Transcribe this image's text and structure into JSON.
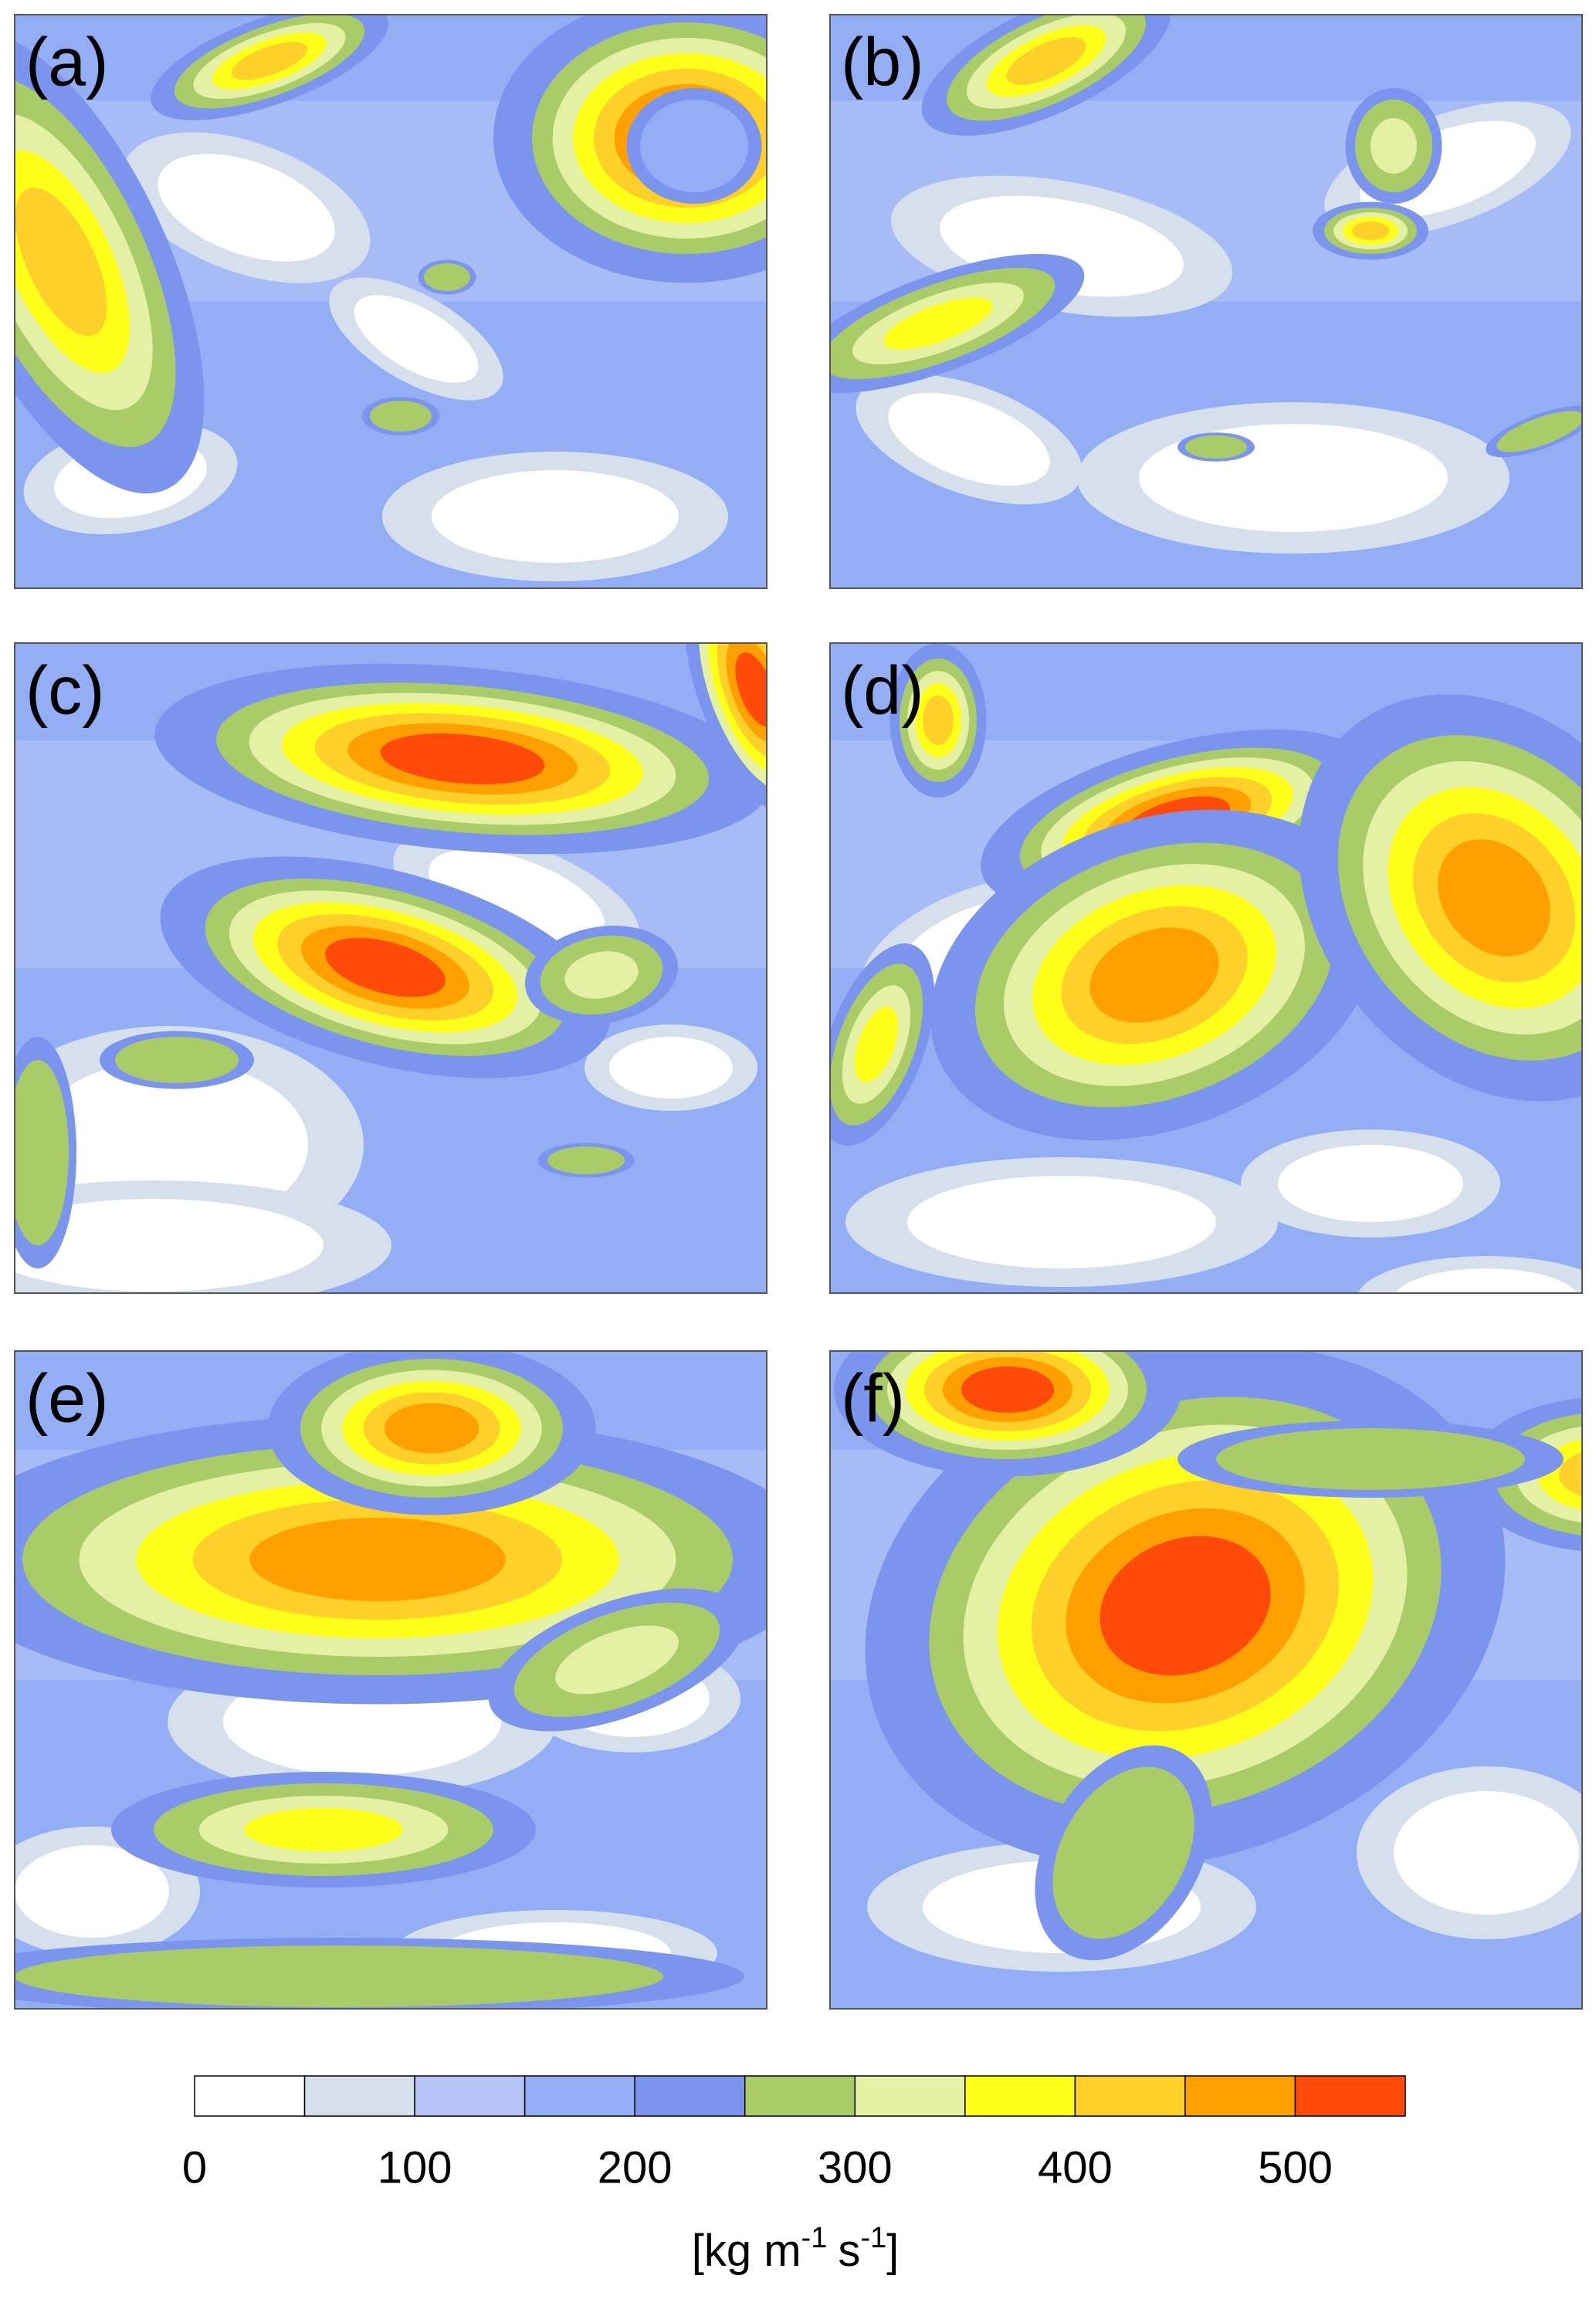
{
  "panels": [
    {
      "label": "(a)"
    },
    {
      "label": "(b)"
    },
    {
      "label": "(c)"
    },
    {
      "label": "(d)"
    },
    {
      "label": "(e)"
    },
    {
      "label": "(f)"
    }
  ],
  "colorbar": {
    "bounds": [
      0,
      50,
      100,
      150,
      200,
      250,
      300,
      350,
      400,
      450,
      500,
      550
    ],
    "colors": [
      "#ffffff",
      "#d6e0ec",
      "#b4c4f6",
      "#94aef5",
      "#7b95ee",
      "#a9cc68",
      "#e4f0a4",
      "#ffff1a",
      "#ffd02a",
      "#ffa000",
      "#ff4a0a"
    ],
    "ticks": [
      0,
      100,
      200,
      300,
      400,
      500
    ],
    "unit": [
      "[kg m",
      "-1",
      "s",
      "-1",
      "]"
    ]
  }
}
